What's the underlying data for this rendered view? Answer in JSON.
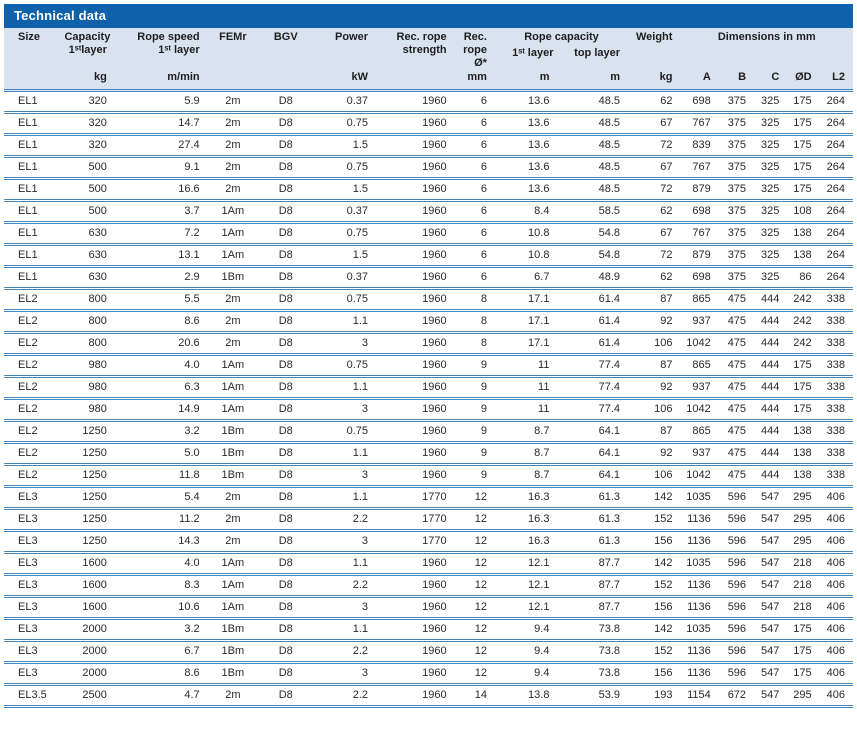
{
  "title": "Technical data",
  "colors": {
    "title_bar_bg": "#0e61ab",
    "title_text": "#ffffff",
    "header_bg": "#d9e3f0",
    "row_divider": "#4486be",
    "body_text": "#2a2a2a"
  },
  "columns": {
    "size": {
      "label": "Size"
    },
    "capacity": {
      "label1": "Capacity",
      "label2": "1ˢᵗlayer",
      "unit": "kg"
    },
    "rope_speed": {
      "label1": "Rope speed",
      "label2": "1ˢᵗ layer",
      "unit": "m/min"
    },
    "femr": {
      "label": "FEMr"
    },
    "bgv": {
      "label": "BGV"
    },
    "power": {
      "label": "Power",
      "unit": "kW"
    },
    "rope_strength": {
      "label1": "Rec. rope",
      "label2": "strength"
    },
    "rope_dia": {
      "label1": "Rec.",
      "label2": "rope Ø*",
      "unit": "mm"
    },
    "rope_capacity": {
      "group": "Rope capacity",
      "sub1": "1ˢᵗ layer",
      "sub2": "top layer",
      "unit1": "m",
      "unit2": "m"
    },
    "weight": {
      "label": "Weight",
      "unit": "kg"
    },
    "dimensions": {
      "group": "Dimensions in mm",
      "subs": [
        "A",
        "B",
        "C",
        "ØD",
        "L2"
      ]
    }
  },
  "rows": [
    [
      "EL1",
      "320",
      "5.9",
      "2m",
      "D8",
      "0.37",
      "1960",
      "6",
      "13.6",
      "48.5",
      "62",
      "698",
      "375",
      "325",
      "175",
      "264"
    ],
    [
      "EL1",
      "320",
      "14.7",
      "2m",
      "D8",
      "0.75",
      "1960",
      "6",
      "13.6",
      "48.5",
      "67",
      "767",
      "375",
      "325",
      "175",
      "264"
    ],
    [
      "EL1",
      "320",
      "27.4",
      "2m",
      "D8",
      "1.5",
      "1960",
      "6",
      "13.6",
      "48.5",
      "72",
      "839",
      "375",
      "325",
      "175",
      "264"
    ],
    [
      "EL1",
      "500",
      "9.1",
      "2m",
      "D8",
      "0.75",
      "1960",
      "6",
      "13.6",
      "48.5",
      "67",
      "767",
      "375",
      "325",
      "175",
      "264"
    ],
    [
      "EL1",
      "500",
      "16.6",
      "2m",
      "D8",
      "1.5",
      "1960",
      "6",
      "13.6",
      "48.5",
      "72",
      "879",
      "375",
      "325",
      "175",
      "264"
    ],
    [
      "EL1",
      "500",
      "3.7",
      "1Am",
      "D8",
      "0.37",
      "1960",
      "6",
      "8.4",
      "58.5",
      "62",
      "698",
      "375",
      "325",
      "108",
      "264"
    ],
    [
      "EL1",
      "630",
      "7.2",
      "1Am",
      "D8",
      "0.75",
      "1960",
      "6",
      "10.8",
      "54.8",
      "67",
      "767",
      "375",
      "325",
      "138",
      "264"
    ],
    [
      "EL1",
      "630",
      "13.1",
      "1Am",
      "D8",
      "1.5",
      "1960",
      "6",
      "10.8",
      "54.8",
      "72",
      "879",
      "375",
      "325",
      "138",
      "264"
    ],
    [
      "EL1",
      "630",
      "2.9",
      "1Bm",
      "D8",
      "0.37",
      "1960",
      "6",
      "6.7",
      "48.9",
      "62",
      "698",
      "375",
      "325",
      "86",
      "264"
    ],
    [
      "EL2",
      "800",
      "5.5",
      "2m",
      "D8",
      "0.75",
      "1960",
      "8",
      "17.1",
      "61.4",
      "87",
      "865",
      "475",
      "444",
      "242",
      "338"
    ],
    [
      "EL2",
      "800",
      "8.6",
      "2m",
      "D8",
      "1.1",
      "1960",
      "8",
      "17.1",
      "61.4",
      "92",
      "937",
      "475",
      "444",
      "242",
      "338"
    ],
    [
      "EL2",
      "800",
      "20.6",
      "2m",
      "D8",
      "3",
      "1960",
      "8",
      "17.1",
      "61.4",
      "106",
      "1042",
      "475",
      "444",
      "242",
      "338"
    ],
    [
      "EL2",
      "980",
      "4.0",
      "1Am",
      "D8",
      "0.75",
      "1960",
      "9",
      "11",
      "77.4",
      "87",
      "865",
      "475",
      "444",
      "175",
      "338"
    ],
    [
      "EL2",
      "980",
      "6.3",
      "1Am",
      "D8",
      "1.1",
      "1960",
      "9",
      "11",
      "77.4",
      "92",
      "937",
      "475",
      "444",
      "175",
      "338"
    ],
    [
      "EL2",
      "980",
      "14.9",
      "1Am",
      "D8",
      "3",
      "1960",
      "9",
      "11",
      "77.4",
      "106",
      "1042",
      "475",
      "444",
      "175",
      "338"
    ],
    [
      "EL2",
      "1250",
      "3.2",
      "1Bm",
      "D8",
      "0.75",
      "1960",
      "9",
      "8.7",
      "64.1",
      "87",
      "865",
      "475",
      "444",
      "138",
      "338"
    ],
    [
      "EL2",
      "1250",
      "5.0",
      "1Bm",
      "D8",
      "1.1",
      "1960",
      "9",
      "8.7",
      "64.1",
      "92",
      "937",
      "475",
      "444",
      "138",
      "338"
    ],
    [
      "EL2",
      "1250",
      "11.8",
      "1Bm",
      "D8",
      "3",
      "1960",
      "9",
      "8.7",
      "64.1",
      "106",
      "1042",
      "475",
      "444",
      "138",
      "338"
    ],
    [
      "EL3",
      "1250",
      "5.4",
      "2m",
      "D8",
      "1.1",
      "1770",
      "12",
      "16.3",
      "61.3",
      "142",
      "1035",
      "596",
      "547",
      "295",
      "406"
    ],
    [
      "EL3",
      "1250",
      "11.2",
      "2m",
      "D8",
      "2.2",
      "1770",
      "12",
      "16.3",
      "61.3",
      "152",
      "1136",
      "596",
      "547",
      "295",
      "406"
    ],
    [
      "EL3",
      "1250",
      "14.3",
      "2m",
      "D8",
      "3",
      "1770",
      "12",
      "16.3",
      "61.3",
      "156",
      "1136",
      "596",
      "547",
      "295",
      "406"
    ],
    [
      "EL3",
      "1600",
      "4.0",
      "1Am",
      "D8",
      "1.1",
      "1960",
      "12",
      "12.1",
      "87.7",
      "142",
      "1035",
      "596",
      "547",
      "218",
      "406"
    ],
    [
      "EL3",
      "1600",
      "8.3",
      "1Am",
      "D8",
      "2.2",
      "1960",
      "12",
      "12.1",
      "87.7",
      "152",
      "1136",
      "596",
      "547",
      "218",
      "406"
    ],
    [
      "EL3",
      "1600",
      "10.6",
      "1Am",
      "D8",
      "3",
      "1960",
      "12",
      "12.1",
      "87.7",
      "156",
      "1136",
      "596",
      "547",
      "218",
      "406"
    ],
    [
      "EL3",
      "2000",
      "3.2",
      "1Bm",
      "D8",
      "1.1",
      "1960",
      "12",
      "9.4",
      "73.8",
      "142",
      "1035",
      "596",
      "547",
      "175",
      "406"
    ],
    [
      "EL3",
      "2000",
      "6.7",
      "1Bm",
      "D8",
      "2.2",
      "1960",
      "12",
      "9.4",
      "73.8",
      "152",
      "1136",
      "596",
      "547",
      "175",
      "406"
    ],
    [
      "EL3",
      "2000",
      "8.6",
      "1Bm",
      "D8",
      "3",
      "1960",
      "12",
      "9.4",
      "73.8",
      "156",
      "1136",
      "596",
      "547",
      "175",
      "406"
    ],
    [
      "EL3.5",
      "2500",
      "4.7",
      "2m",
      "D8",
      "2.2",
      "1960",
      "14",
      "13.8",
      "53.9",
      "193",
      "1154",
      "672",
      "547",
      "295",
      "406"
    ]
  ]
}
